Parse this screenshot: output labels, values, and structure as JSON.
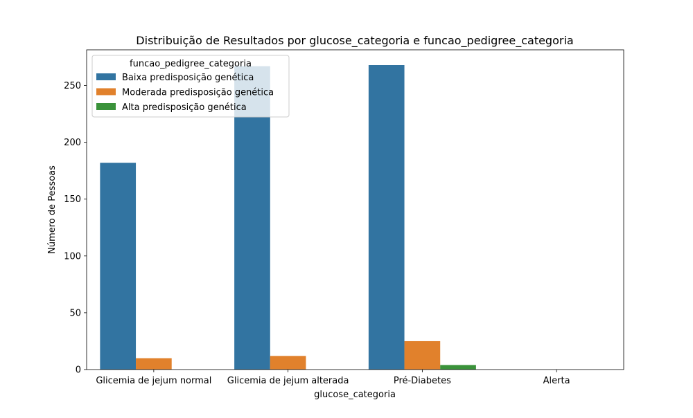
{
  "chart_data": {
    "type": "bar",
    "title": "Distribuição de Resultados por glucose_categoria e funcao_pedigree_categoria",
    "xlabel": "glucose_categoria",
    "ylabel": "Número de Pessoas",
    "categories": [
      "Glicemia de jejum normal",
      "Glicemia de jejum alterada",
      "Pré-Diabetes",
      "Alerta"
    ],
    "series": [
      {
        "name": "Baixa predisposição genética",
        "color": "#3274a1",
        "values": [
          182,
          267,
          268,
          0
        ]
      },
      {
        "name": "Moderada predisposição genética",
        "color": "#e1812c",
        "values": [
          10,
          12,
          25,
          0
        ]
      },
      {
        "name": "Alta predisposição genética",
        "color": "#3a923a",
        "values": [
          0,
          0,
          4,
          0
        ]
      }
    ],
    "ylim": [
      0,
      281.4
    ],
    "yticks": [
      0,
      50,
      100,
      150,
      200,
      250
    ],
    "legend": {
      "title": "funcao_pedigree_categoria",
      "position": "top-left"
    },
    "grid": false
  }
}
